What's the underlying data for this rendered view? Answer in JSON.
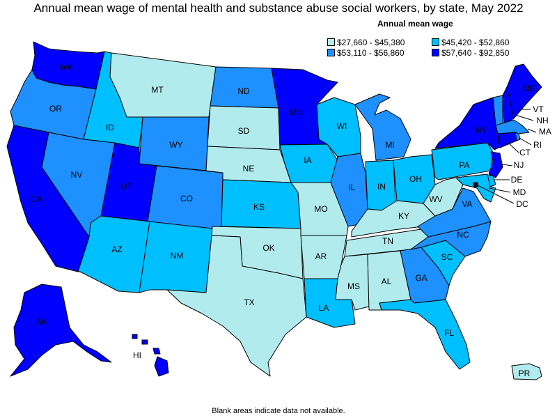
{
  "title": "Annual mean wage of mental health and substance abuse social workers, by state, May 2022",
  "legend": {
    "title": "Annual mean wage",
    "items": [
      {
        "label": "$27,660 - $45,380",
        "color": "#b2ebee"
      },
      {
        "label": "$45,420 - $52,860",
        "color": "#00bfff"
      },
      {
        "label": "$53,110 - $56,860",
        "color": "#1e90ff"
      },
      {
        "label": "$57,640 - $92,850",
        "color": "#0000ff"
      }
    ]
  },
  "states": {
    "WA": {
      "label": "WA",
      "tier": 3
    },
    "OR": {
      "label": "OR",
      "tier": 2
    },
    "CA": {
      "label": "CA",
      "tier": 3
    },
    "ID": {
      "label": "ID",
      "tier": 1
    },
    "NV": {
      "label": "NV",
      "tier": 2
    },
    "MT": {
      "label": "MT",
      "tier": 0
    },
    "WY": {
      "label": "WY",
      "tier": 2
    },
    "UT": {
      "label": "UT",
      "tier": 3
    },
    "AZ": {
      "label": "AZ",
      "tier": 1
    },
    "CO": {
      "label": "CO",
      "tier": 2
    },
    "NM": {
      "label": "NM",
      "tier": 1
    },
    "ND": {
      "label": "ND",
      "tier": 2
    },
    "SD": {
      "label": "SD",
      "tier": 0
    },
    "NE": {
      "label": "NE",
      "tier": 0
    },
    "KS": {
      "label": "KS",
      "tier": 1
    },
    "OK": {
      "label": "OK",
      "tier": 0
    },
    "TX": {
      "label": "TX",
      "tier": 0
    },
    "MN": {
      "label": "MN",
      "tier": 3
    },
    "IA": {
      "label": "IA",
      "tier": 1
    },
    "MO": {
      "label": "MO",
      "tier": 0
    },
    "AR": {
      "label": "AR",
      "tier": 0
    },
    "LA": {
      "label": "LA",
      "tier": 1
    },
    "WI": {
      "label": "WI",
      "tier": 1
    },
    "IL": {
      "label": "IL",
      "tier": 2
    },
    "MI": {
      "label": "MI",
      "tier": 2
    },
    "IN": {
      "label": "IN",
      "tier": 1
    },
    "OH": {
      "label": "OH",
      "tier": 1
    },
    "KY": {
      "label": "KY",
      "tier": 0
    },
    "TN": {
      "label": "TN",
      "tier": 0
    },
    "MS": {
      "label": "MS",
      "tier": 0
    },
    "AL": {
      "label": "AL",
      "tier": 0
    },
    "GA": {
      "label": "GA",
      "tier": 2
    },
    "FL": {
      "label": "FL",
      "tier": 1
    },
    "SC": {
      "label": "SC",
      "tier": 1
    },
    "NC": {
      "label": "NC",
      "tier": 2
    },
    "VA": {
      "label": "VA",
      "tier": 2
    },
    "WV": {
      "label": "WV",
      "tier": 0
    },
    "PA": {
      "label": "PA",
      "tier": 1
    },
    "NY": {
      "label": "NY",
      "tier": 3
    },
    "VT": {
      "label": "VT",
      "tier": 2
    },
    "NH": {
      "label": "NH",
      "tier": 3
    },
    "ME": {
      "label": "ME",
      "tier": 3
    },
    "MA": {
      "label": "MA",
      "tier": 2
    },
    "RI": {
      "label": "RI",
      "tier": 2
    },
    "CT": {
      "label": "CT",
      "tier": 3
    },
    "NJ": {
      "label": "NJ",
      "tier": 3
    },
    "DE": {
      "label": "DE",
      "tier": 1
    },
    "MD": {
      "label": "MD",
      "tier": 1
    },
    "DC": {
      "label": "DC",
      "tier": 3
    },
    "AK": {
      "label": "AK",
      "tier": 3
    },
    "HI": {
      "label": "HI",
      "tier": 3
    },
    "PR": {
      "label": "PR",
      "tier": 0
    }
  },
  "footnote": "Blank areas indicate data not available."
}
